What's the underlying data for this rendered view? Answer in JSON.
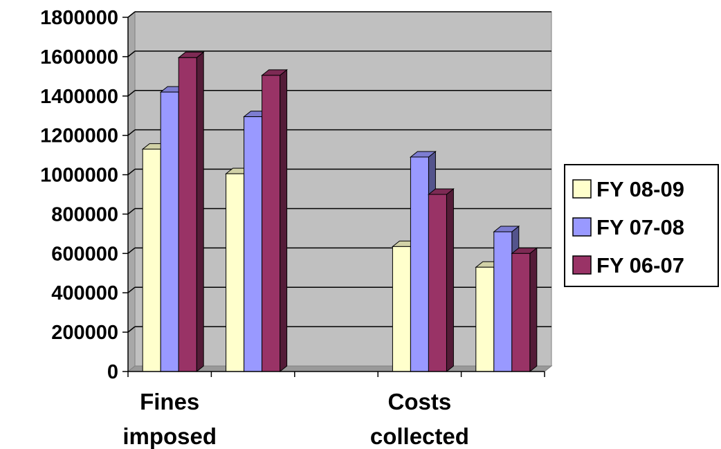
{
  "chart_data": {
    "type": "bar",
    "title": "",
    "xlabel": "",
    "ylabel": "",
    "ylim": [
      0,
      1800000
    ],
    "y_ticks": [
      "0",
      "200000",
      "400000",
      "600000",
      "800000",
      "1000000",
      "1200000",
      "1400000",
      "1600000",
      "1800000"
    ],
    "grid": true,
    "legend_position": "right",
    "categories": [
      "Fines imposed",
      "",
      "",
      "Costs collected",
      ""
    ],
    "category_labels": [
      {
        "lines": [
          "Fines",
          "imposed"
        ]
      },
      {
        "lines": []
      },
      {
        "lines": []
      },
      {
        "lines": [
          "Costs",
          "collected"
        ]
      },
      {
        "lines": []
      }
    ],
    "series": [
      {
        "name": "FY 08-09",
        "color": "#FFFFCC",
        "values": [
          1130000,
          1005000,
          0,
          635000,
          530000
        ]
      },
      {
        "name": "FY 07-08",
        "color": "#9999FF",
        "values": [
          1420000,
          1295000,
          0,
          1090000,
          710000
        ]
      },
      {
        "name": "FY 06-07",
        "color": "#993366",
        "values": [
          1595000,
          1505000,
          0,
          900000,
          600000
        ]
      }
    ]
  }
}
